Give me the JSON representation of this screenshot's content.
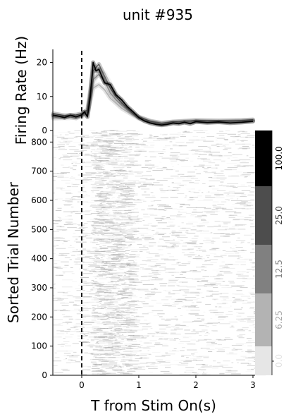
{
  "chart_data": {
    "title": "unit #935",
    "top_panel": {
      "type": "line",
      "ylabel": "Firing Rate (Hz)",
      "ylim": [
        0,
        23
      ],
      "yticks": [
        0,
        10,
        20
      ],
      "series": [
        {
          "color": "#000000",
          "x": [
            -0.5,
            -0.4,
            -0.3,
            -0.2,
            -0.1,
            0.0,
            0.05,
            0.1,
            0.15,
            0.2,
            0.25,
            0.3,
            0.4,
            0.5,
            0.6,
            0.7,
            0.8,
            0.9,
            1.0,
            1.1,
            1.2,
            1.3,
            1.4,
            1.5,
            1.6,
            1.7,
            1.8,
            1.9,
            2.0,
            2.2,
            2.4,
            2.6,
            2.8,
            3.0
          ],
          "values": [
            4.5,
            4.2,
            3.8,
            4.5,
            4.0,
            4.6,
            5.5,
            4.0,
            10.0,
            20.0,
            17.5,
            18.0,
            14.0,
            13.5,
            10.5,
            9.0,
            7.0,
            5.5,
            3.8,
            2.8,
            2.2,
            1.8,
            1.6,
            1.8,
            2.2,
            2.0,
            2.4,
            2.0,
            2.6,
            2.3,
            2.5,
            2.2,
            2.4,
            2.7
          ]
        },
        {
          "color": "#606060",
          "x": [
            -0.5,
            -0.3,
            -0.1,
            0.0,
            0.1,
            0.2,
            0.3,
            0.4,
            0.5,
            0.6,
            0.7,
            0.8,
            0.9,
            1.0,
            1.2,
            1.4,
            1.6,
            1.8,
            2.0,
            2.4,
            2.8,
            3.0
          ],
          "values": [
            5.0,
            4.4,
            4.6,
            5.0,
            6.0,
            17.5,
            19.5,
            16.0,
            12.5,
            10.0,
            8.0,
            6.5,
            5.0,
            4.0,
            2.8,
            2.2,
            2.6,
            2.8,
            3.0,
            2.9,
            3.0,
            3.2
          ]
        },
        {
          "color": "#8c8c8c",
          "x": [
            -0.5,
            -0.3,
            -0.1,
            0.0,
            0.1,
            0.2,
            0.3,
            0.4,
            0.5,
            0.6,
            0.7,
            0.8,
            0.9,
            1.0,
            1.2,
            1.4,
            1.6,
            1.8,
            2.0,
            2.4,
            2.8,
            3.0
          ],
          "values": [
            4.0,
            4.2,
            3.6,
            4.4,
            5.5,
            15.0,
            16.5,
            14.5,
            11.0,
            9.0,
            7.5,
            6.0,
            4.8,
            3.8,
            2.6,
            2.0,
            2.4,
            2.6,
            2.8,
            2.6,
            2.8,
            3.0
          ]
        },
        {
          "color": "#b0b0b0",
          "x": [
            -0.5,
            -0.3,
            -0.1,
            0.0,
            0.1,
            0.2,
            0.3,
            0.4,
            0.5,
            0.6,
            0.7,
            0.8,
            0.9,
            1.0,
            1.2,
            1.4,
            1.6,
            1.8,
            2.0,
            2.4,
            2.8,
            3.0
          ],
          "values": [
            3.6,
            3.8,
            4.0,
            4.2,
            5.0,
            12.5,
            13.5,
            12.0,
            9.5,
            8.0,
            6.5,
            5.5,
            4.5,
            3.5,
            2.4,
            1.8,
            2.2,
            2.4,
            2.6,
            2.4,
            2.6,
            2.8
          ]
        },
        {
          "color": "#e0e0e0",
          "x": [
            -0.5,
            -0.3,
            -0.1,
            0.0,
            0.1,
            0.2,
            0.3,
            0.4,
            0.5,
            0.6,
            0.7,
            0.8,
            0.9,
            1.0,
            1.2,
            1.4,
            1.6,
            1.8,
            2.0,
            2.4,
            2.8,
            3.0
          ],
          "values": [
            3.5,
            3.5,
            3.8,
            4.0,
            5.0,
            13.0,
            18.0,
            17.0,
            14.0,
            11.0,
            8.5,
            6.5,
            5.0,
            3.6,
            2.6,
            2.0,
            2.2,
            2.4,
            2.4,
            2.5,
            2.8,
            3.0
          ]
        }
      ]
    },
    "bottom_panel": {
      "type": "heatmap",
      "ylabel": "Sorted Trial Number",
      "xlabel": "T from Stim On(s)",
      "xlim": [
        -0.55,
        3.1
      ],
      "xticks": [
        0,
        1,
        2,
        3
      ],
      "ylim": [
        0,
        840
      ],
      "yticks": [
        0,
        100,
        200,
        300,
        400,
        500,
        600,
        700,
        800
      ],
      "stim_onset": 0
    },
    "colorbar": {
      "labels": [
        "0.0",
        "6.25",
        "12.5",
        "25.0",
        "100.0"
      ],
      "colors": [
        "#e6e6e6",
        "#b3b3b3",
        "#808080",
        "#4d4d4d",
        "#000000"
      ],
      "label_colors": [
        "#e0e0e0",
        "#aaaaaa",
        "#808080",
        "#444444",
        "#000000"
      ]
    }
  }
}
